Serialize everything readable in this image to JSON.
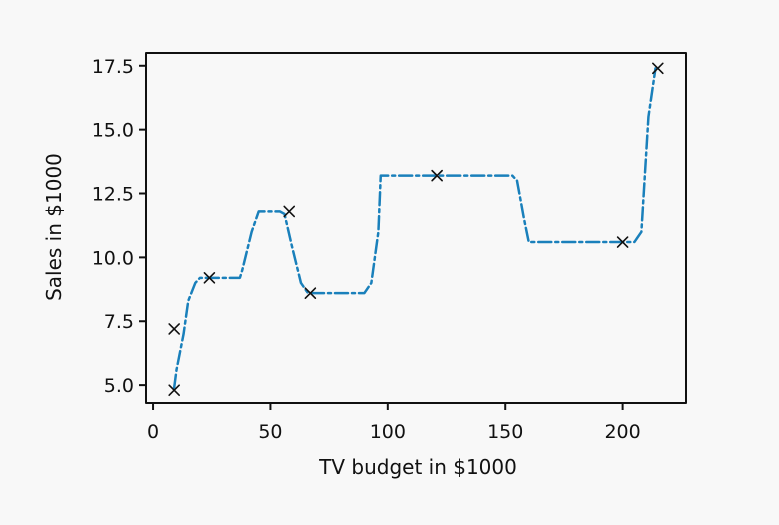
{
  "chart_data": {
    "type": "line",
    "title": "",
    "xlabel": "TV budget in $1000",
    "ylabel": "Sales in $1000",
    "xlim": [
      -3,
      227
    ],
    "ylim": [
      4.3,
      18.0
    ],
    "xticks": [
      0,
      50,
      100,
      150,
      200
    ],
    "xtick_labels": [
      "0",
      "50",
      "100",
      "150",
      "200"
    ],
    "yticks": [
      5.0,
      7.5,
      10.0,
      12.5,
      15.0,
      17.5
    ],
    "ytick_labels": [
      "5.0",
      "7.5",
      "10.0",
      "12.5",
      "15.0",
      "17.5"
    ],
    "grid": false,
    "legend": "none",
    "series": [
      {
        "kind": "scatter",
        "marker": "x",
        "color": "#111111",
        "x": [
          9,
          9,
          24,
          58,
          67,
          121,
          200,
          215
        ],
        "y": [
          4.8,
          7.2,
          9.2,
          11.8,
          8.6,
          13.2,
          10.6,
          17.4
        ]
      },
      {
        "kind": "step-line",
        "style": "dash-dot",
        "color": "#1a80bb",
        "x": [
          9,
          10,
          13,
          15,
          18,
          20,
          37,
          38,
          42,
          45,
          54,
          56,
          59,
          63,
          66,
          69,
          90,
          93,
          96,
          97,
          153,
          155,
          158,
          160,
          205,
          208,
          211,
          214
        ],
        "y": [
          4.9,
          5.6,
          7.0,
          8.3,
          9.0,
          9.2,
          9.2,
          9.5,
          11.0,
          11.8,
          11.8,
          11.7,
          10.5,
          9.0,
          8.6,
          8.6,
          8.6,
          9.0,
          11.0,
          13.2,
          13.2,
          13.0,
          11.5,
          10.6,
          10.6,
          11.0,
          15.5,
          17.4
        ]
      }
    ]
  }
}
